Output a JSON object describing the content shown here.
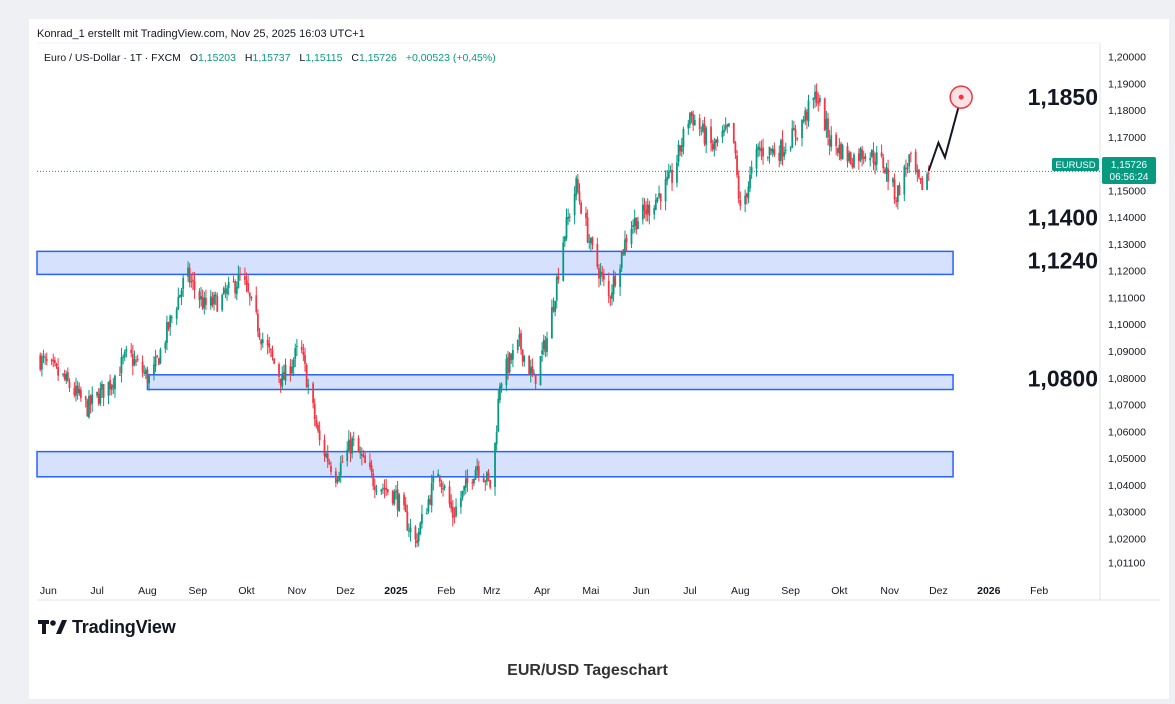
{
  "header": {
    "attribution": "Konrad_1 erstellt mit TradingView.com, Nov 25, 2025 16:03 UTC+1",
    "instrument": "Euro / US-Dollar · 1T · FXCM",
    "o_label": "O",
    "o_value": "1,15203",
    "h_label": "H",
    "h_value": "1,15737",
    "l_label": "L",
    "l_value": "1,15115",
    "c_label": "C",
    "c_value": "1,15726",
    "change": "+0,00523 (+0,45%)"
  },
  "price_tag": {
    "symbol": "EURUSD",
    "price": "1,15726",
    "countdown": "06:56:24"
  },
  "branding": {
    "logo_text": "TradingView"
  },
  "caption": "EUR/USD Tageschart",
  "colors": {
    "up": "#089981",
    "down": "#f23645",
    "zone_fill": "#cfdcfd",
    "zone_border": "#2962ff",
    "target_circle": "#f23645",
    "last_price": "#089981"
  },
  "chart_data": {
    "type": "candlestick",
    "title": "EUR/USD Tageschart",
    "xlabel": "",
    "ylabel": "",
    "x_ticks": [
      "Jun",
      "Jul",
      "Aug",
      "Sep",
      "Okt",
      "Nov",
      "Dez",
      "2025",
      "Feb",
      "Mrz",
      "Apr",
      "Mai",
      "Jun",
      "Jul",
      "Aug",
      "Sep",
      "Okt",
      "Nov",
      "Dez",
      "2026",
      "Feb"
    ],
    "y_ticks": [
      "1,20000",
      "1,19000",
      "1,18000",
      "1,17000",
      "1,16000",
      "1,15000",
      "1,14000",
      "1,13000",
      "1,12000",
      "1,11000",
      "1,10000",
      "1,09000",
      "1,08000",
      "1,07000",
      "1,06000",
      "1,05000",
      "1,04000",
      "1,03000",
      "1,02000",
      "1,01100"
    ],
    "ylim": [
      1.007,
      1.203
    ],
    "grid": false,
    "level_labels": [
      {
        "text": "1,1850",
        "value": 1.185
      },
      {
        "text": "1,1400",
        "value": 1.14
      },
      {
        "text": "1,1240",
        "value": 1.124
      },
      {
        "text": "1,0800",
        "value": 1.08
      }
    ],
    "zones": [
      {
        "from": 1.1188,
        "to": 1.1274,
        "start": "2024-05-25",
        "end": "2025-12-10"
      },
      {
        "from": 1.0758,
        "to": 1.0813,
        "start": "2024-08-01",
        "end": "2025-12-10"
      },
      {
        "from": 1.0432,
        "to": 1.0526,
        "start": "2024-05-25",
        "end": "2025-12-10"
      }
    ],
    "last_price": 1.15726,
    "projection": [
      {
        "date": "2025-11-25",
        "value": 1.1575
      },
      {
        "date": "2025-12-01",
        "value": 1.168
      },
      {
        "date": "2025-12-05",
        "value": 1.1625
      },
      {
        "date": "2025-12-15",
        "value": 1.185
      }
    ],
    "target": {
      "date": "2025-12-15",
      "value": 1.185
    },
    "series": [
      {
        "date": "2024-05-25",
        "close": 1.088
      },
      {
        "date": "2024-06-10",
        "close": 1.08
      },
      {
        "date": "2024-06-25",
        "close": 1.069
      },
      {
        "date": "2024-07-10",
        "close": 1.079
      },
      {
        "date": "2024-07-20",
        "close": 1.089
      },
      {
        "date": "2024-08-03",
        "close": 1.079
      },
      {
        "date": "2024-08-15",
        "close": 1.101
      },
      {
        "date": "2024-08-25",
        "close": 1.119
      },
      {
        "date": "2024-09-05",
        "close": 1.107
      },
      {
        "date": "2024-09-15",
        "close": 1.109
      },
      {
        "date": "2024-09-28",
        "close": 1.118
      },
      {
        "date": "2024-10-10",
        "close": 1.096
      },
      {
        "date": "2024-10-23",
        "close": 1.079
      },
      {
        "date": "2024-11-03",
        "close": 1.092
      },
      {
        "date": "2024-11-15",
        "close": 1.056
      },
      {
        "date": "2024-11-25",
        "close": 1.044
      },
      {
        "date": "2024-12-05",
        "close": 1.056
      },
      {
        "date": "2024-12-18",
        "close": 1.042
      },
      {
        "date": "2025-01-01",
        "close": 1.036
      },
      {
        "date": "2025-01-13",
        "close": 1.019
      },
      {
        "date": "2025-01-27",
        "close": 1.046
      },
      {
        "date": "2025-02-05",
        "close": 1.029
      },
      {
        "date": "2025-02-20",
        "close": 1.048
      },
      {
        "date": "2025-03-01",
        "close": 1.039
      },
      {
        "date": "2025-03-06",
        "close": 1.079
      },
      {
        "date": "2025-03-18",
        "close": 1.093
      },
      {
        "date": "2025-03-27",
        "close": 1.079
      },
      {
        "date": "2025-04-05",
        "close": 1.097
      },
      {
        "date": "2025-04-14",
        "close": 1.132
      },
      {
        "date": "2025-04-22",
        "close": 1.152
      },
      {
        "date": "2025-05-01",
        "close": 1.129
      },
      {
        "date": "2025-05-12",
        "close": 1.11
      },
      {
        "date": "2025-05-25",
        "close": 1.137
      },
      {
        "date": "2025-06-05",
        "close": 1.143
      },
      {
        "date": "2025-06-20",
        "close": 1.155
      },
      {
        "date": "2025-07-01",
        "close": 1.179
      },
      {
        "date": "2025-07-15",
        "close": 1.166
      },
      {
        "date": "2025-07-27",
        "close": 1.174
      },
      {
        "date": "2025-08-01",
        "close": 1.142
      },
      {
        "date": "2025-08-12",
        "close": 1.165
      },
      {
        "date": "2025-08-25",
        "close": 1.165
      },
      {
        "date": "2025-09-05",
        "close": 1.172
      },
      {
        "date": "2025-09-17",
        "close": 1.186
      },
      {
        "date": "2025-09-25",
        "close": 1.169
      },
      {
        "date": "2025-10-08",
        "close": 1.162
      },
      {
        "date": "2025-10-17",
        "close": 1.165
      },
      {
        "date": "2025-10-28",
        "close": 1.16
      },
      {
        "date": "2025-11-05",
        "close": 1.148
      },
      {
        "date": "2025-11-13",
        "close": 1.162
      },
      {
        "date": "2025-11-20",
        "close": 1.151
      },
      {
        "date": "2025-11-25",
        "close": 1.1573
      }
    ]
  }
}
